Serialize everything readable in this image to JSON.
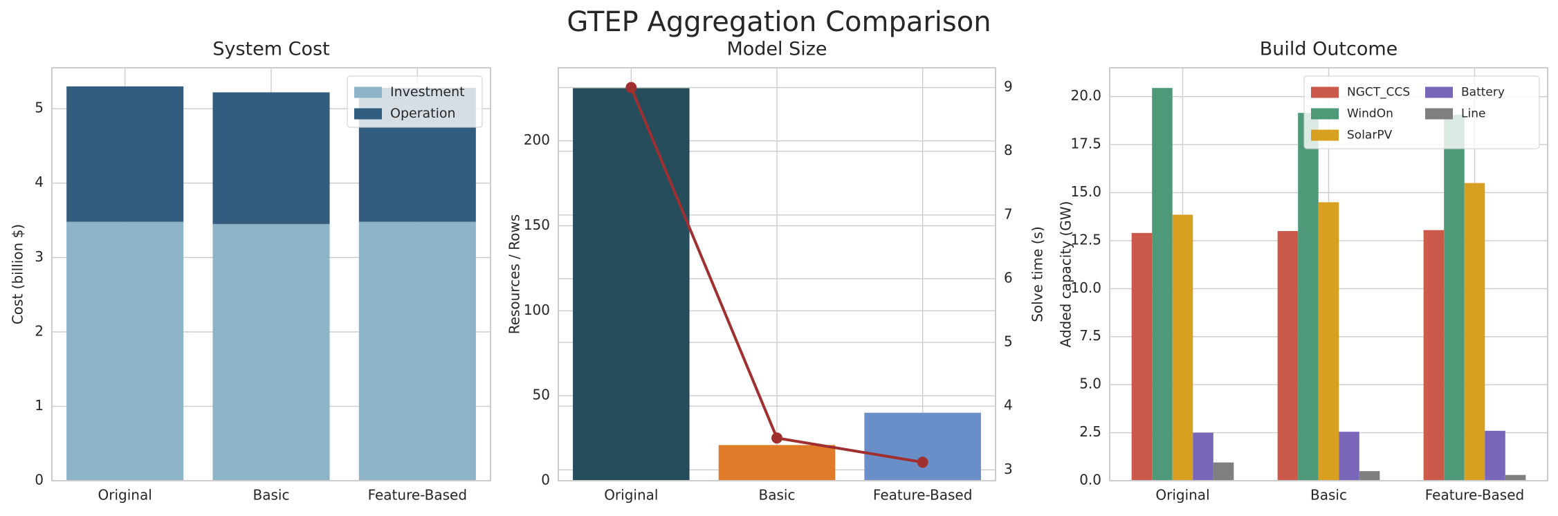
{
  "title": "GTEP Aggregation Comparison",
  "chart_data": [
    {
      "type": "stacked_bar",
      "title": "System Cost",
      "ylabel": "Cost (billion $)",
      "categories": [
        "Original",
        "Basic",
        "Feature-Based"
      ],
      "series": [
        {
          "name": "Investment",
          "color": "#8db3c7",
          "values": [
            3.48,
            3.45,
            3.48
          ]
        },
        {
          "name": "Operation",
          "color": "#335d7e",
          "values": [
            1.82,
            1.77,
            1.8
          ]
        }
      ],
      "ylim": [
        0,
        5.55
      ],
      "yticks": [
        0,
        1,
        2,
        3,
        4,
        5
      ],
      "grid": true,
      "legend": "upper right",
      "legend_columns": 1
    },
    {
      "type": "bar_line",
      "title": "Model Size",
      "ylabel": "Resources / Rows",
      "y2label": "Solve time (s)",
      "categories": [
        "Original",
        "Basic",
        "Feature-Based"
      ],
      "values": [
        231,
        21,
        40
      ],
      "colors": [
        "#264d5c",
        "#e07b2a",
        "#6a8fc8"
      ],
      "y2_values": [
        9.0,
        3.5,
        3.12
      ],
      "y2_color": "#a03030",
      "ylim": [
        0,
        243
      ],
      "yticks": [
        0,
        50,
        100,
        150,
        200
      ],
      "y2lim": [
        2.83,
        9.31
      ],
      "y2ticks": [
        3,
        4,
        5,
        6,
        7,
        8,
        9
      ],
      "grid": true
    },
    {
      "type": "grouped_bar",
      "title": "Build Outcome",
      "ylabel": "Added capacity (GW)",
      "categories": [
        "Original",
        "Basic",
        "Feature-Based"
      ],
      "series": [
        {
          "name": "NGCT_CCS",
          "color": "#cc5a4a",
          "values": [
            12.9,
            13.0,
            13.05
          ]
        },
        {
          "name": "WindOn",
          "color": "#4e9a78",
          "values": [
            20.45,
            19.15,
            19.05
          ]
        },
        {
          "name": "SolarPV",
          "color": "#d8a020",
          "values": [
            13.85,
            14.5,
            15.5
          ]
        },
        {
          "name": "Battery",
          "color": "#7a66b8",
          "values": [
            2.5,
            2.55,
            2.6
          ]
        },
        {
          "name": "Line",
          "color": "#7f7f7f",
          "values": [
            0.95,
            0.5,
            0.3
          ]
        }
      ],
      "ylim": [
        0,
        21.5
      ],
      "yticks": [
        {
          "value": 0,
          "label": "0.0"
        },
        {
          "value": 2.5,
          "label": "2.5"
        },
        {
          "value": 5,
          "label": "5.0"
        },
        {
          "value": 7.5,
          "label": "7.5"
        },
        {
          "value": 10,
          "label": "10.0"
        },
        {
          "value": 12.5,
          "label": "12.5"
        },
        {
          "value": 15,
          "label": "15.0"
        },
        {
          "value": 17.5,
          "label": "17.5"
        },
        {
          "value": 20,
          "label": "20.0"
        }
      ],
      "grid": true,
      "legend": "upper right",
      "legend_columns": 2
    }
  ]
}
